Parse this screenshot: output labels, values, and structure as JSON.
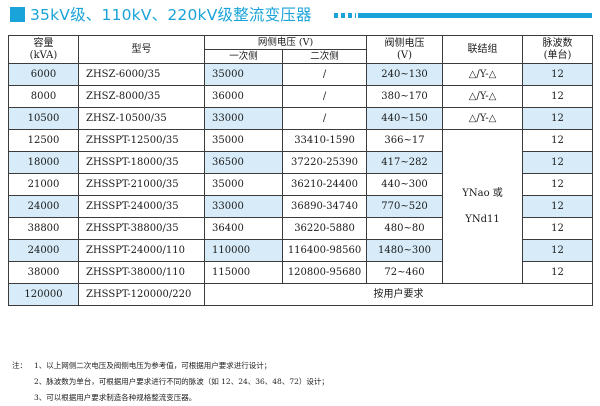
{
  "header": {
    "title": "35kV级、110kV、220kV级整流变压器",
    "accent": "#1aa3d8"
  },
  "table": {
    "highlight_color": "#d7ecf8",
    "headers": {
      "capacity_l1": "容量",
      "capacity_l2": "(kVA)",
      "model": "型号",
      "grid_voltage": "网侧电压 (V)",
      "primary": "一次侧",
      "secondary": "二次侧",
      "valve_l1": "阀侧电压",
      "valve_l2": "(V)",
      "connection": "联结组",
      "pulse_l1": "脉波数",
      "pulse_l2": "(单台)"
    },
    "rows": [
      {
        "capacity": "6000",
        "model": "ZHSZ-6000/35",
        "primary": "35000",
        "secondary": "/",
        "valve": "240~130",
        "connection": "△/Y-△",
        "pulse": "12"
      },
      {
        "capacity": "8000",
        "model": "ZHSZ-8000/35",
        "primary": "36000",
        "secondary": "/",
        "valve": "380~170",
        "connection": "△/Y-△",
        "pulse": "12"
      },
      {
        "capacity": "10500",
        "model": "ZHSZ-10500/35",
        "primary": "33000",
        "secondary": "/",
        "valve": "440~150",
        "connection": "△/Y-△",
        "pulse": "12"
      },
      {
        "capacity": "12500",
        "model": "ZHSSPT-12500/35",
        "primary": "35000",
        "secondary": "33410-1590",
        "valve": "366~17",
        "pulse": "12"
      },
      {
        "capacity": "18000",
        "model": "ZHSSPT-18000/35",
        "primary": "36500",
        "secondary": "37220-25390",
        "valve": "417~282",
        "pulse": "12"
      },
      {
        "capacity": "21000",
        "model": "ZHSSPT-21000/35",
        "primary": "35000",
        "secondary": "36210-24400",
        "valve": "440~300",
        "pulse": "12"
      },
      {
        "capacity": "24000",
        "model": "ZHSSPT-24000/35",
        "primary": "33000",
        "secondary": "36890-34740",
        "valve": "770~520",
        "pulse": "12"
      },
      {
        "capacity": "38800",
        "model": "ZHSSPT-38800/35",
        "primary": "36400",
        "secondary": "36220-5880",
        "valve": "480~80",
        "pulse": "12"
      },
      {
        "capacity": "24000",
        "model": "ZHSSPT-24000/110",
        "primary": "110000",
        "secondary": "116400-98560",
        "valve": "1480~300",
        "pulse": "12"
      },
      {
        "capacity": "38000",
        "model": "ZHSSPT-38000/110",
        "primary": "115000",
        "secondary": "120800-95680",
        "valve": "72~460",
        "pulse": "12"
      }
    ],
    "merged_connection_l1": "YNao 或",
    "merged_connection_l2": "YNd11",
    "last_row": {
      "capacity": "120000",
      "model": "ZHSSPT-120000/220",
      "note": "按用户要求"
    }
  },
  "notes": {
    "label": "注：",
    "items": [
      "1、以上网侧二次电压及阀侧电压为参考值，可根据用户要求进行设计；",
      "2、脉波数为单台，可根据用户要求进行不同的脉波（如 12、24、36、48、72）设计；",
      "3、可以根据用户要求制造各种规格整流变压器。"
    ]
  }
}
